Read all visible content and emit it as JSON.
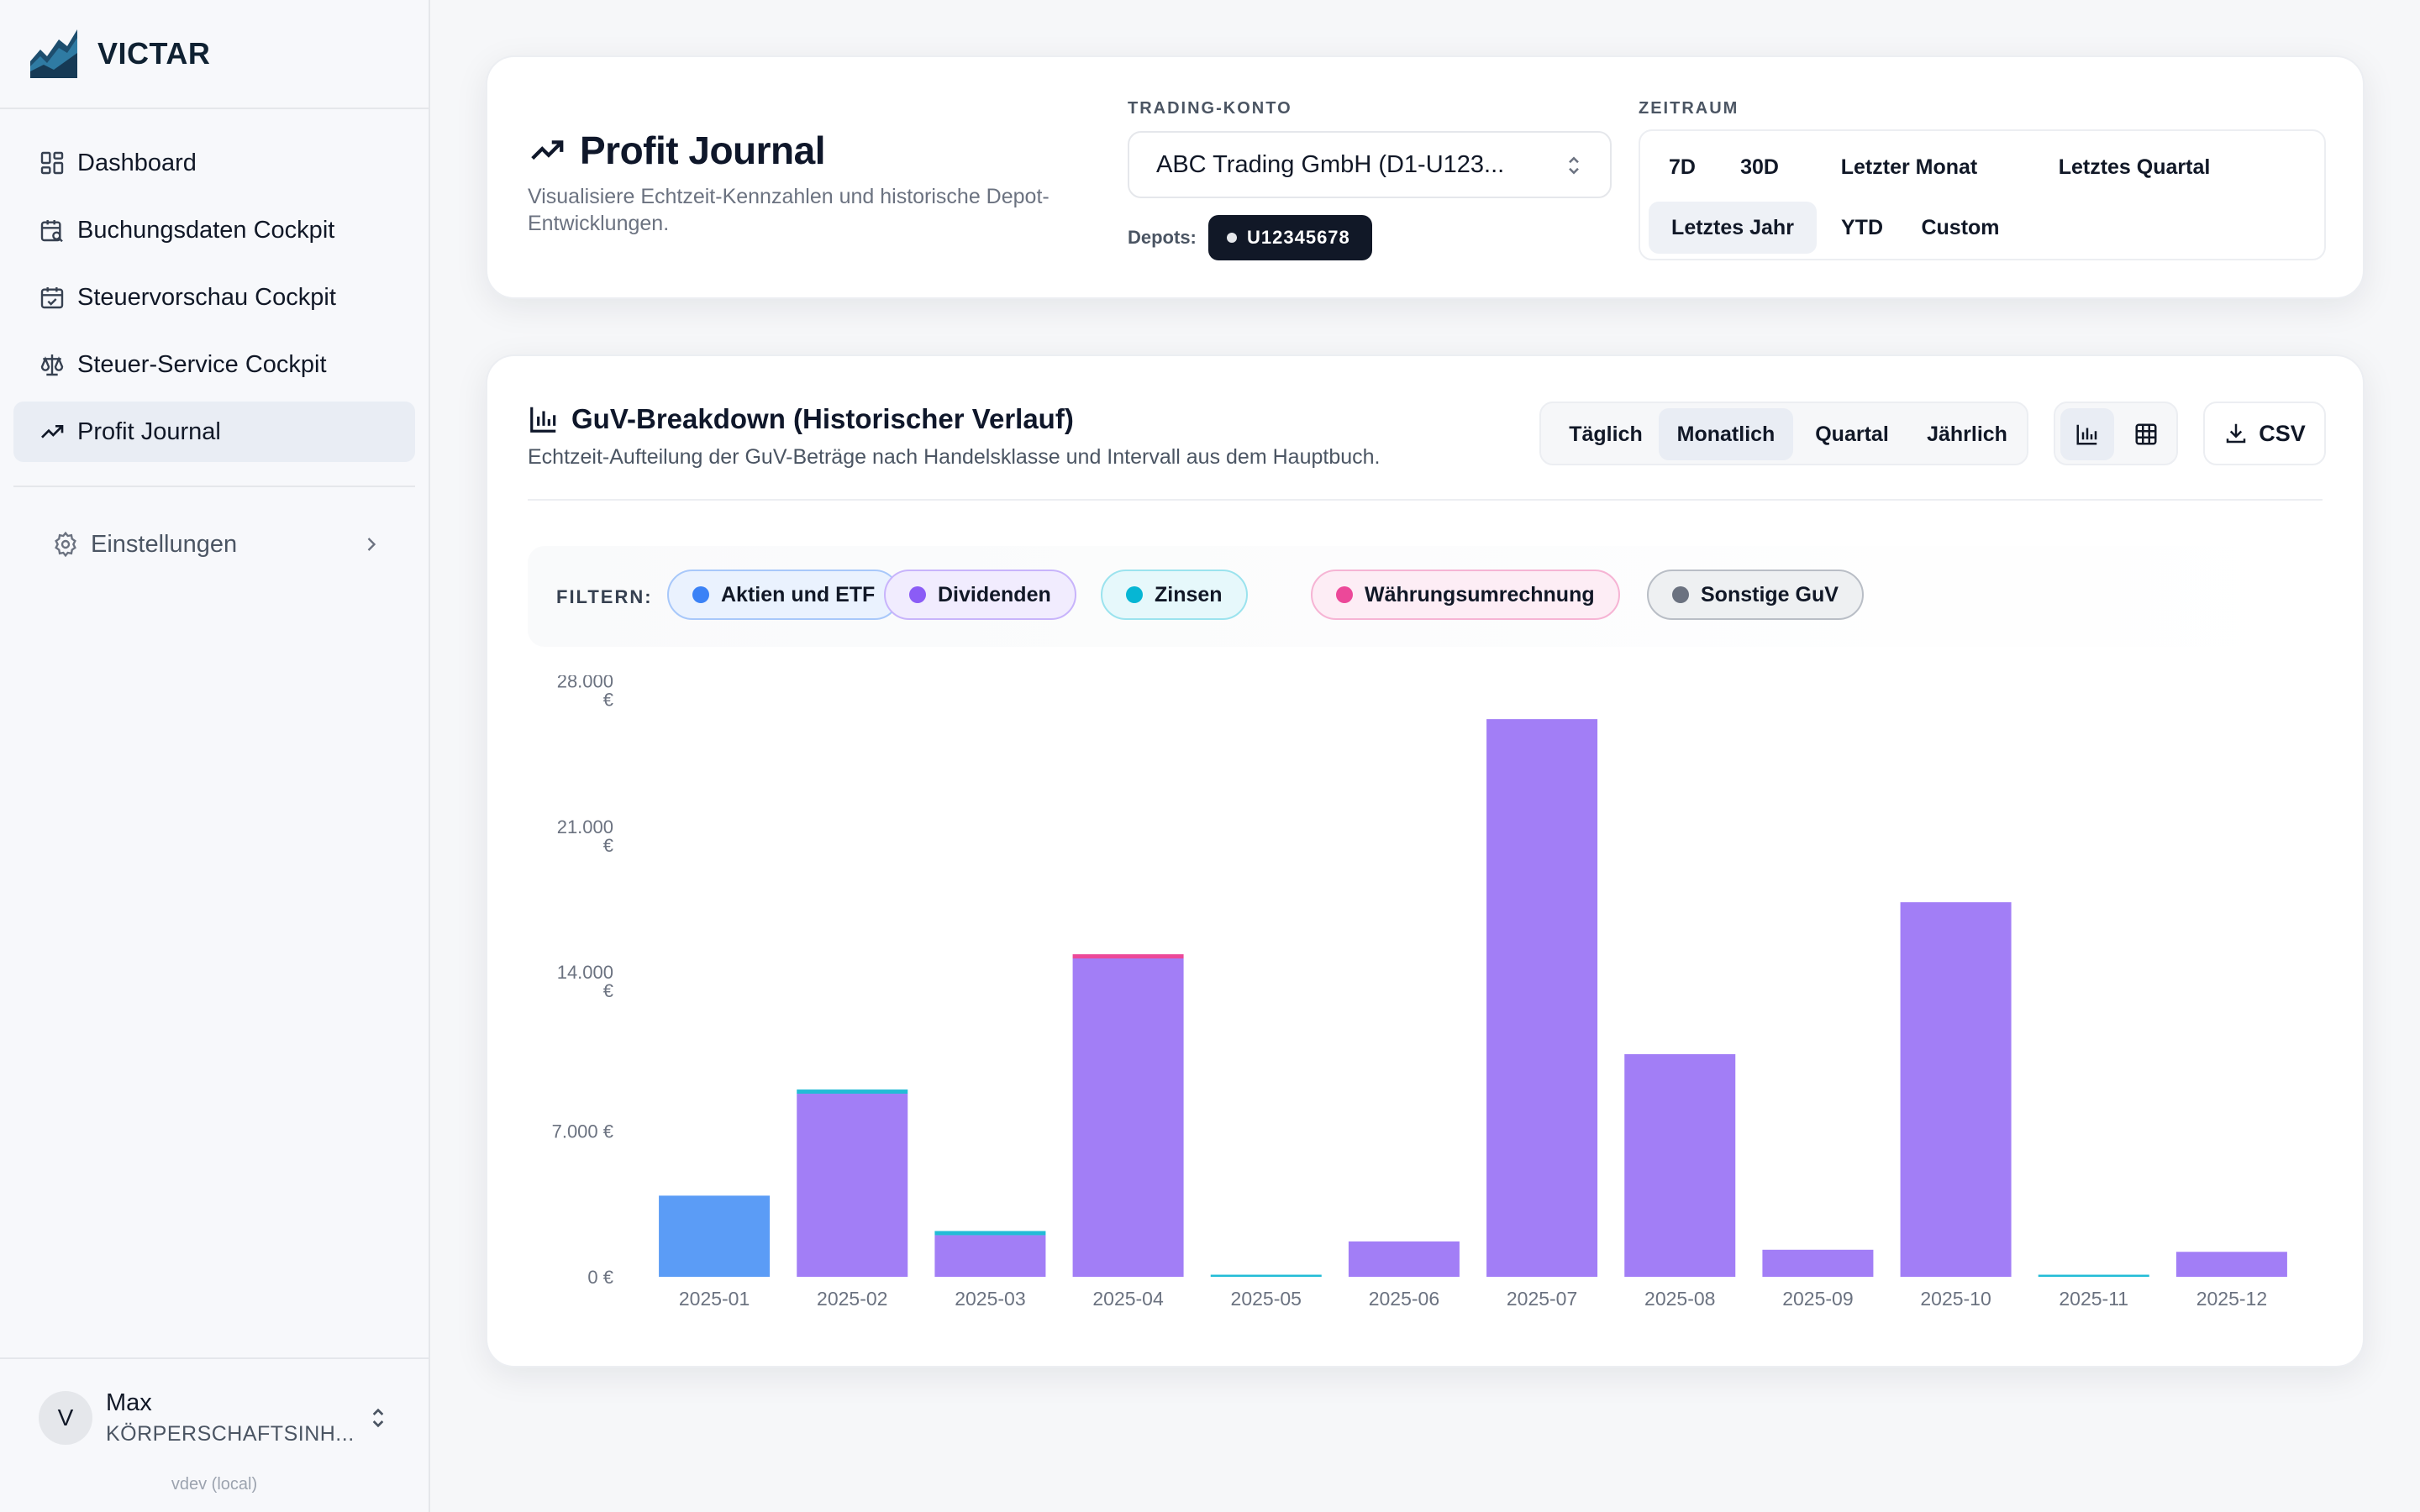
{
  "app": {
    "name": "VICTAR",
    "version": "vdev (local)"
  },
  "sidebar": {
    "items": [
      {
        "label": "Dashboard"
      },
      {
        "label": "Buchungsdaten Cockpit"
      },
      {
        "label": "Steuervorschau Cockpit"
      },
      {
        "label": "Steuer-Service Cockpit"
      },
      {
        "label": "Profit Journal",
        "active": true
      }
    ],
    "settings_label": "Einstellungen",
    "user": {
      "initial": "V",
      "name": "Max",
      "org": "KÖRPERSCHAFTSINH..."
    }
  },
  "header": {
    "title": "Profit Journal",
    "subtitle": "Visualisiere Echtzeit-Kennzahlen und historische Depot-Entwicklungen.",
    "account_label": "TRADING-KONTO",
    "account_value": "ABC Trading GmbH (D1-U123...",
    "depots_label": "Depots:",
    "depot": "U12345678",
    "period_label": "ZEITRAUM",
    "periods": [
      "7D",
      "30D",
      "Letzter Monat",
      "Letztes Quartal",
      "Letztes Jahr",
      "YTD",
      "Custom"
    ],
    "active_period": "Letztes Jahr"
  },
  "breakdown": {
    "title": "GuV-Breakdown (Historischer Verlauf)",
    "subtitle": "Echtzeit-Aufteilung der GuV-Beträge nach Handelsklasse und Intervall aus dem Hauptbuch.",
    "intervals": [
      "Täglich",
      "Monatlich",
      "Quartal",
      "Jährlich"
    ],
    "active_interval": "Monatlich",
    "csv_label": "CSV",
    "filter_label": "FILTERN:",
    "filters": [
      {
        "label": "Aktien und ETF",
        "color": "#3b82f6",
        "bg": "#eaf2fe",
        "border": "#a8c8fa"
      },
      {
        "label": "Dividenden",
        "color": "#8b5cf6",
        "bg": "#f1ecfe",
        "border": "#c8b4fb"
      },
      {
        "label": "Zinsen",
        "color": "#06b6d4",
        "bg": "#e6f8fb",
        "border": "#9be3ee"
      },
      {
        "label": "Währungsumrechnung",
        "color": "#ec4899",
        "bg": "#fdedf5",
        "border": "#f6b4d4"
      },
      {
        "label": "Sonstige GuV",
        "color": "#6b7280",
        "bg": "#eef0f2",
        "border": "#b9bec6"
      }
    ]
  },
  "chart_data": {
    "type": "bar",
    "stacked": true,
    "categories": [
      "2025-01",
      "2025-02",
      "2025-03",
      "2025-04",
      "2025-05",
      "2025-06",
      "2025-07",
      "2025-08",
      "2025-09",
      "2025-10",
      "2025-11",
      "2025-12"
    ],
    "series": [
      {
        "name": "Aktien und ETF",
        "color": "#5b9cf6",
        "values": [
          3900,
          0,
          0,
          0,
          0,
          0,
          0,
          0,
          0,
          0,
          0,
          0
        ]
      },
      {
        "name": "Dividenden",
        "color": "#a27ef6",
        "values": [
          0,
          8800,
          2000,
          15300,
          0,
          1700,
          26800,
          10700,
          1300,
          18000,
          0,
          1200
        ]
      },
      {
        "name": "Zinsen",
        "color": "#22bcd6",
        "values": [
          0,
          200,
          200,
          0,
          100,
          0,
          0,
          0,
          0,
          0,
          100,
          0
        ]
      },
      {
        "name": "Währungsumrechnung",
        "color": "#ec4899",
        "values": [
          0,
          0,
          0,
          200,
          0,
          0,
          0,
          0,
          0,
          0,
          0,
          0
        ]
      },
      {
        "name": "Sonstige GuV",
        "color": "#6b7280",
        "values": [
          0,
          0,
          0,
          0,
          0,
          0,
          0,
          0,
          0,
          0,
          0,
          0
        ]
      }
    ],
    "yticks": [
      {
        "value": 0,
        "label": [
          "0 €"
        ]
      },
      {
        "value": 7000,
        "label": [
          "7.000 €"
        ]
      },
      {
        "value": 14000,
        "label": [
          "14.000",
          "€"
        ]
      },
      {
        "value": 21000,
        "label": [
          "21.000",
          "€"
        ]
      },
      {
        "value": 28000,
        "label": [
          "28.000",
          "€"
        ]
      }
    ],
    "ylim": [
      0,
      28500
    ],
    "grid": false,
    "legend": "top"
  }
}
